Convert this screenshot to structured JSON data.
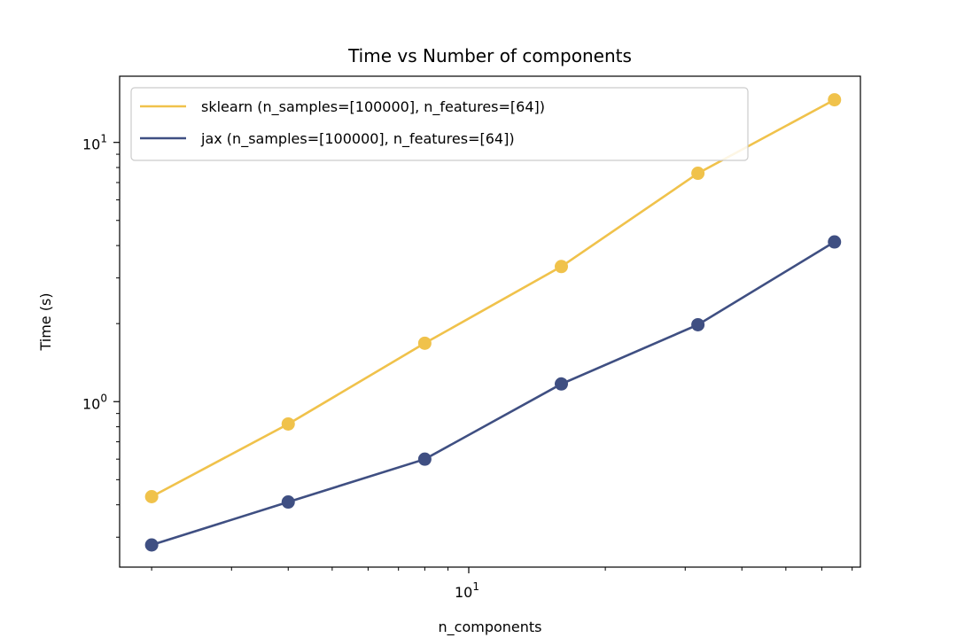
{
  "chart_data": {
    "type": "line",
    "title": "Time vs Number of components",
    "xlabel": "n_components",
    "ylabel": "Time (s)",
    "xscale": "log",
    "yscale": "log",
    "xlim": [
      1.7,
      73
    ],
    "ylim": [
      0.23,
      18
    ],
    "grid": false,
    "legend_position": "top-left",
    "x": [
      2,
      4,
      8,
      16,
      32,
      64
    ],
    "series": [
      {
        "name": "sklearn (n_samples=[100000], n_features=[64])",
        "color": "#f0c24b",
        "values": [
          0.43,
          0.82,
          1.68,
          3.32,
          7.6,
          14.6
        ]
      },
      {
        "name": "jax (n_samples=[100000], n_features=[64])",
        "color": "#3f4f82",
        "values": [
          0.28,
          0.41,
          0.6,
          1.17,
          1.98,
          4.13
        ]
      }
    ],
    "x_ticks": [
      {
        "value": 10,
        "base": "10",
        "exp": "1"
      }
    ],
    "y_ticks": [
      {
        "value": 1,
        "base": "10",
        "exp": "0"
      },
      {
        "value": 10,
        "base": "10",
        "exp": "1"
      }
    ]
  }
}
